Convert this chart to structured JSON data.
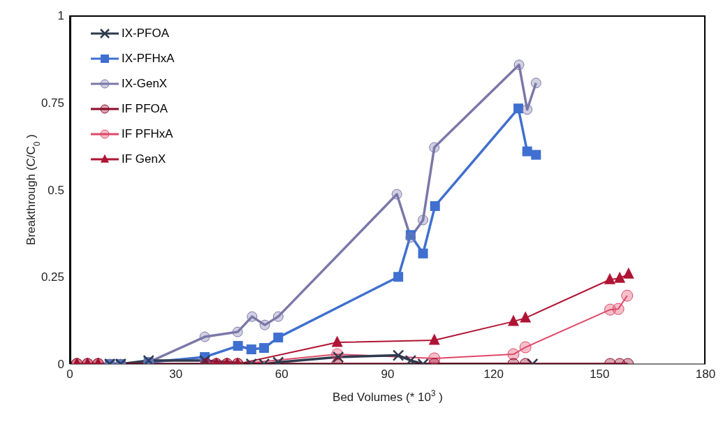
{
  "chart_data": {
    "type": "line",
    "xlabel": "Bed Volumes (* 10$^{3}$)",
    "ylabel": "Breakthrough (C/C$_{0}$)",
    "xlim": [
      0,
      180
    ],
    "xticks": [
      0,
      30,
      60,
      90,
      120,
      150,
      180
    ],
    "ylim": [
      0,
      1
    ],
    "yticks": [
      0,
      0.25,
      0.5,
      0.75,
      1
    ],
    "grid": false,
    "legend": "top left",
    "series": [
      {
        "name": "IX-PFOA",
        "color": "#2e3a4e",
        "marker": "cross",
        "x": [
          11.3,
          14.4,
          22.3,
          38.2,
          51.4,
          55,
          59,
          76,
          93,
          96.5,
          100,
          131
        ],
        "values": [
          0,
          0,
          0.01,
          0.01,
          0,
          0,
          0.005,
          0.02,
          0.025,
          0.01,
          0,
          0
        ]
      },
      {
        "name": "IX-PFHxA",
        "color": "#3f6fd0",
        "marker": "square",
        "x": [
          11.3,
          14.4,
          22.3,
          38.2,
          47.6,
          51.4,
          55,
          59,
          93,
          96.5,
          100,
          103.4,
          127,
          129.5,
          132
        ],
        "values": [
          0,
          0,
          0.005,
          0.02,
          0.052,
          0.042,
          0.046,
          0.076,
          0.25,
          0.37,
          0.317,
          0.453,
          0.733,
          0.61,
          0.6
        ]
      },
      {
        "name": "IX-GenX",
        "color": "#7a78a8",
        "marker": "circle",
        "x": [
          11.3,
          14.4,
          22.3,
          38.2,
          47.5,
          51.6,
          55.2,
          59,
          92.6,
          96.5,
          100,
          103.2,
          127.2,
          129.5,
          132
        ],
        "values": [
          0,
          0,
          0.005,
          0.078,
          0.092,
          0.136,
          0.112,
          0.136,
          0.487,
          0.363,
          0.413,
          0.621,
          0.858,
          0.73,
          0.806
        ]
      },
      {
        "name": "IF PFOA",
        "color": "#8c0a28",
        "marker": "circle",
        "x": [
          2,
          5,
          8,
          38.6,
          41.5,
          44.5,
          47.5,
          75.7,
          103.2,
          125.6,
          129,
          153,
          155.7,
          158
        ],
        "values": [
          0,
          0,
          0,
          0,
          0,
          0,
          0,
          0,
          0,
          0,
          0,
          0,
          0,
          0
        ]
      },
      {
        "name": "IF PFHxA",
        "color": "#e04868",
        "marker": "circle",
        "x": [
          2,
          5,
          8,
          38.6,
          41.5,
          44.5,
          47.5,
          75.7,
          103.2,
          125.6,
          129,
          153,
          155.3,
          157.8
        ],
        "values": [
          0,
          0,
          0,
          0,
          0,
          0,
          0,
          0.028,
          0.016,
          0.028,
          0.048,
          0.156,
          0.158,
          0.196
        ]
      },
      {
        "name": "IF GenX",
        "color": "#b01434",
        "marker": "triangle",
        "x": [
          2,
          5,
          8,
          38.6,
          41.5,
          44.5,
          47.5,
          75.7,
          103.2,
          125.6,
          129,
          152.9,
          155.7,
          158.2
        ],
        "values": [
          0,
          0,
          0,
          0,
          0,
          0,
          0,
          0.062,
          0.068,
          0.122,
          0.132,
          0.242,
          0.246,
          0.258
        ]
      }
    ]
  }
}
